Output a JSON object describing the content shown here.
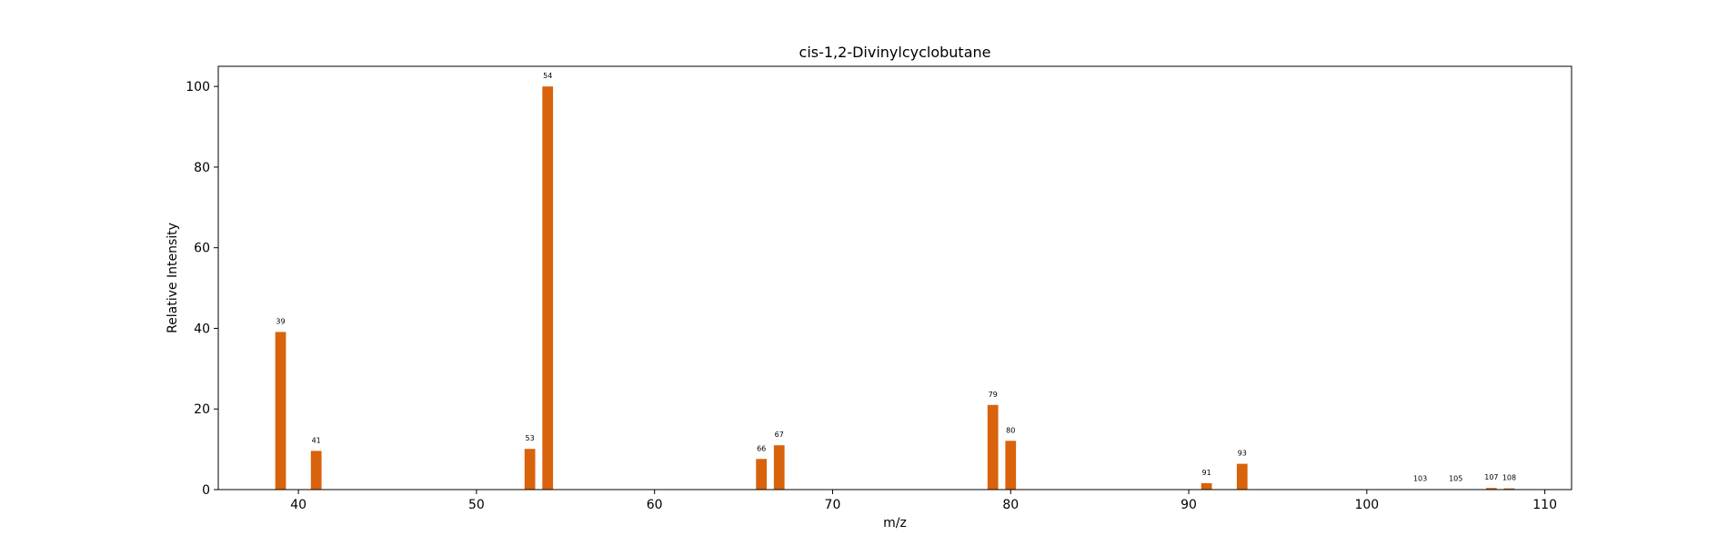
{
  "chart_data": {
    "type": "bar",
    "title": "cis-1,2-Divinylcyclobutane",
    "xlabel": "m/z",
    "ylabel": "Relative Intensity",
    "xlim": [
      35.5,
      111.5
    ],
    "ylim": [
      0,
      105
    ],
    "xticks": [
      40,
      50,
      60,
      70,
      80,
      90,
      100,
      110
    ],
    "yticks": [
      0,
      20,
      40,
      60,
      80,
      100
    ],
    "grid": false,
    "bar_color": "#d9620c",
    "points": [
      {
        "x": 39,
        "y": 39.1,
        "label": "39"
      },
      {
        "x": 41,
        "y": 9.6,
        "label": "41"
      },
      {
        "x": 53,
        "y": 10.1,
        "label": "53"
      },
      {
        "x": 54,
        "y": 100.0,
        "label": "54"
      },
      {
        "x": 66,
        "y": 7.6,
        "label": "66"
      },
      {
        "x": 67,
        "y": 11.0,
        "label": "67"
      },
      {
        "x": 79,
        "y": 21.0,
        "label": "79"
      },
      {
        "x": 80,
        "y": 12.1,
        "label": "80"
      },
      {
        "x": 91,
        "y": 1.6,
        "label": "91"
      },
      {
        "x": 93,
        "y": 6.4,
        "label": "93"
      },
      {
        "x": 103,
        "y": 0.1,
        "label": "103"
      },
      {
        "x": 105,
        "y": 0.1,
        "label": "105"
      },
      {
        "x": 107,
        "y": 0.4,
        "label": "107"
      },
      {
        "x": 108,
        "y": 0.3,
        "label": "108"
      }
    ]
  }
}
